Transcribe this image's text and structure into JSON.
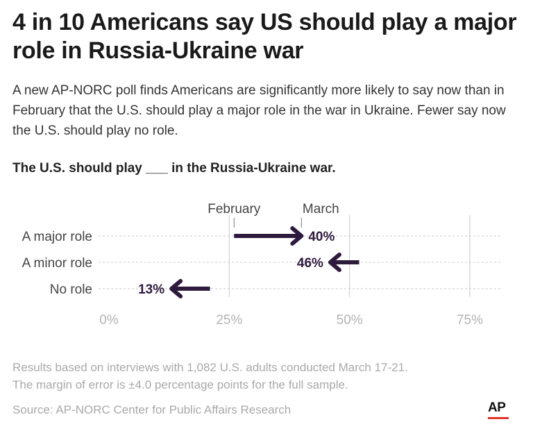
{
  "header": {
    "title": "4 in 10 Americans say US should play a major role in Russia-Ukraine war",
    "subtitle": "A new AP-NORC poll finds Americans are significantly more likely to say now than in February that the U.S. should play a major role in the war in Ukraine. Fewer say now the U.S. should play no role.",
    "question": "The U.S. should play ___ in the Russia-Ukraine war."
  },
  "chart_data": {
    "type": "arrow",
    "categories": [
      "A major role",
      "A minor role",
      "No role"
    ],
    "series": [
      {
        "name": "February",
        "values": [
          26,
          52,
          21
        ]
      },
      {
        "name": "March",
        "values": [
          40,
          46,
          13
        ]
      }
    ],
    "value_labels": [
      "40%",
      "46%",
      "13%"
    ],
    "xlim": [
      0,
      75
    ],
    "x_ticks": [
      0,
      25,
      50,
      75
    ],
    "x_tick_labels": [
      "0%",
      "25%",
      "50%",
      "75%"
    ],
    "grid": true,
    "colors": {
      "arrow": "#2e1a3d",
      "grid": "#c8c8c8",
      "tick_label": "#b3b3b3",
      "category_label": "#444444"
    }
  },
  "footer": {
    "note_line1": "Results based on interviews with 1,082 U.S. adults conducted March 17-21.",
    "note_line2": "The margin of error is ±4.0 percentage points for the full sample.",
    "source": "Source: AP-NORC Center for Public Affairs Research",
    "logo_text": "AP",
    "logo_bar_color": "#e0312b"
  }
}
